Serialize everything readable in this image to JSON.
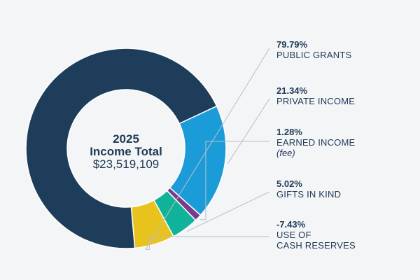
{
  "chart_data": {
    "type": "pie",
    "donut": true,
    "center": {
      "year": "2025",
      "title": "Income Total",
      "amount": "$23,519,109"
    },
    "legend_placement": "right",
    "slices": [
      {
        "label_lines": [
          "PUBLIC GRANTS"
        ],
        "percent_label": "79.79%",
        "value": 79.79,
        "color": "#1d3d5a"
      },
      {
        "label_lines": [
          "PRIVATE INCOME"
        ],
        "percent_label": "21.34%",
        "value": 21.34,
        "color": "#1b9cd8"
      },
      {
        "label_lines": [
          "EARNED INCOME"
        ],
        "note": "(fee)",
        "percent_label": "1.28%",
        "value": 1.28,
        "color": "#7a3b8c"
      },
      {
        "label_lines": [
          "GIFTS IN KIND"
        ],
        "percent_label": "5.02%",
        "value": 5.02,
        "color": "#10b39a"
      },
      {
        "label_lines": [
          "USE OF",
          "CASH RESERVES"
        ],
        "percent_label": "-7.43%",
        "value": -7.43,
        "color": "#e8c21d"
      }
    ]
  }
}
